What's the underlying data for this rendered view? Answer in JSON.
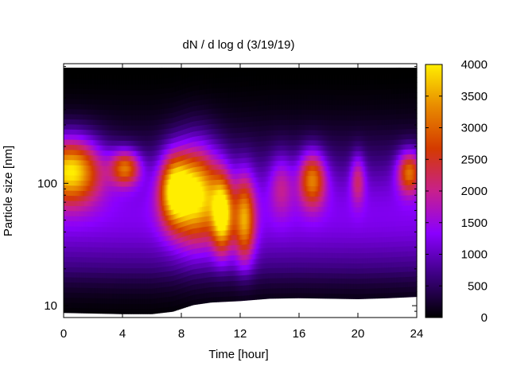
{
  "chart_data": {
    "type": "heatmap",
    "title": "dN / d log d (3/19/19)",
    "xlabel": "Time [hour]",
    "ylabel": "Particle size [nm]",
    "xlim": [
      0,
      24
    ],
    "x_ticks": [
      0,
      4,
      8,
      12,
      16,
      20,
      24
    ],
    "y_scale": "log",
    "ylim": [
      8,
      950
    ],
    "y_ticks": [
      10,
      100
    ],
    "grid": false,
    "colorbar": {
      "range": [
        0,
        4000
      ],
      "ticks": [
        0,
        500,
        1000,
        1500,
        2000,
        2500,
        3000,
        3500,
        4000
      ],
      "colormap": "black-purple-red-orange-yellow",
      "colors": [
        "#000000",
        "#3c0080",
        "#8a00ff",
        "#c8208c",
        "#d43a00",
        "#e88a00",
        "#ffee00"
      ]
    },
    "data_extent": {
      "size_max_nm": 880,
      "size_min_nm": 9
    },
    "grid_resolution": {
      "time_step_h": 0.1,
      "size_bins_per_decade": 24
    },
    "concentration_features": [
      {
        "time_h": 0.5,
        "size_nm": 130,
        "width_h": 2.0,
        "log_width": 0.26,
        "value": 3200
      },
      {
        "time_h": 4.2,
        "size_nm": 135,
        "width_h": 1.0,
        "log_width": 0.14,
        "value": 2300
      },
      {
        "time_h": 7.5,
        "size_nm": 90,
        "width_h": 1.0,
        "log_width": 0.28,
        "value": 2500
      },
      {
        "time_h": 9.0,
        "size_nm": 85,
        "width_h": 1.6,
        "log_width": 0.38,
        "value": 3000
      },
      {
        "time_h": 10.8,
        "size_nm": 55,
        "width_h": 0.7,
        "log_width": 0.3,
        "value": 2800
      },
      {
        "time_h": 12.3,
        "size_nm": 50,
        "width_h": 0.7,
        "log_width": 0.35,
        "value": 2300
      },
      {
        "time_h": 14.8,
        "size_nm": 100,
        "width_h": 0.8,
        "log_width": 0.25,
        "value": 900
      },
      {
        "time_h": 16.9,
        "size_nm": 110,
        "width_h": 0.9,
        "log_width": 0.22,
        "value": 2300
      },
      {
        "time_h": 20.0,
        "size_nm": 110,
        "width_h": 0.5,
        "log_width": 0.2,
        "value": 1200
      },
      {
        "time_h": 23.5,
        "size_nm": 125,
        "width_h": 0.8,
        "log_width": 0.17,
        "value": 2300
      }
    ],
    "lower_cutoff_nm": [
      [
        0,
        8.8
      ],
      [
        2,
        8.7
      ],
      [
        4,
        8.6
      ],
      [
        6,
        8.6
      ],
      [
        7.4,
        9.0
      ],
      [
        8.0,
        9.5
      ],
      [
        8.8,
        10.2
      ],
      [
        10.0,
        10.7
      ],
      [
        12.0,
        11.0
      ],
      [
        14.0,
        11.5
      ],
      [
        16.0,
        11.6
      ],
      [
        18.0,
        11.5
      ],
      [
        20.0,
        11.4
      ],
      [
        22.0,
        11.6
      ],
      [
        24.0,
        11.9
      ]
    ]
  }
}
